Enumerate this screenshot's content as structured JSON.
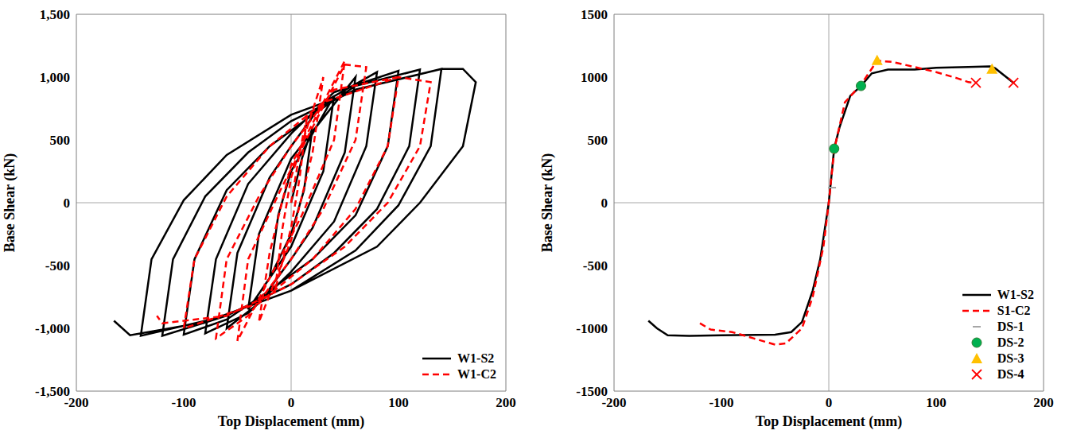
{
  "chart_data": [
    {
      "type": "line",
      "x_label": "Top Displacement (mm)",
      "y_label": "Base Shear (kN)",
      "xlim": [
        -200,
        200
      ],
      "xticks": [
        -200,
        -100,
        0,
        100,
        200
      ],
      "ylim": [
        -1500,
        1500
      ],
      "yticks": [
        {
          "value": -1500,
          "label": "-1,500"
        },
        {
          "value": -1000,
          "label": "-1,000"
        },
        -500,
        0,
        500,
        {
          "value": 1000,
          "label": "1,000"
        },
        {
          "value": 1500,
          "label": "1,500"
        }
      ],
      "legend": "lower right",
      "series": [
        {
          "name": "W1-S2",
          "color": "#000000",
          "line_style": "solid",
          "x": [
            0,
            10,
            20,
            12,
            0,
            -20,
            -12,
            0,
            40,
            30,
            0,
            -40,
            -30,
            0,
            60,
            50,
            20,
            0,
            -30,
            -60,
            -50,
            -20,
            0,
            30,
            80,
            70,
            40,
            0,
            -40,
            -80,
            -70,
            -40,
            0,
            40,
            100,
            90,
            60,
            20,
            -20,
            -60,
            -100,
            -90,
            -60,
            -20,
            20,
            60,
            120,
            110,
            80,
            40,
            0,
            -60,
            -120,
            -110,
            -80,
            -40,
            0,
            60,
            140,
            130,
            100,
            60,
            0,
            -70,
            -140,
            -130,
            -100,
            -60,
            0,
            70,
            140,
            160,
            172,
            160,
            120,
            80,
            0,
            -80,
            -150,
            -165
          ],
          "values": [
            0,
            350,
            600,
            100,
            -250,
            -600,
            -100,
            250,
            850,
            250,
            -350,
            -850,
            -250,
            350,
            1000,
            400,
            -200,
            -450,
            -800,
            -1000,
            -400,
            200,
            450,
            800,
            1040,
            450,
            -150,
            -550,
            -880,
            -1040,
            -450,
            150,
            550,
            880,
            1050,
            450,
            -100,
            -450,
            -700,
            -930,
            -1050,
            -450,
            100,
            450,
            700,
            930,
            1060,
            450,
            -50,
            -400,
            -650,
            -900,
            -1060,
            -450,
            50,
            400,
            650,
            900,
            1065,
            450,
            -20,
            -380,
            -700,
            -920,
            -1060,
            -450,
            20,
            380,
            700,
            920,
            1065,
            1065,
            960,
            450,
            0,
            -350,
            -700,
            -950,
            -1055,
            -940
          ]
        },
        {
          "name": "W1-C2",
          "color": "#ff0000",
          "line_style": "dashed",
          "x": [
            0,
            8,
            15,
            8,
            0,
            -15,
            -8,
            0,
            30,
            20,
            0,
            -30,
            -20,
            0,
            50,
            40,
            10,
            -20,
            -50,
            -40,
            -10,
            20,
            50,
            70,
            60,
            30,
            0,
            -40,
            -70,
            -60,
            -30,
            0,
            40,
            100,
            90,
            60,
            20,
            -30,
            -100,
            -90,
            -60,
            -20,
            30,
            100,
            130,
            120,
            90,
            50,
            0,
            -60,
            -120,
            -125
          ],
          "values": [
            0,
            400,
            700,
            200,
            -200,
            -700,
            -200,
            200,
            1000,
            400,
            -300,
            -950,
            -400,
            300,
            1130,
            500,
            -100,
            -600,
            -1100,
            -450,
            100,
            600,
            1100,
            1080,
            500,
            -50,
            -450,
            -900,
            -1080,
            -450,
            50,
            450,
            900,
            1000,
            450,
            -50,
            -450,
            -800,
            -1000,
            -450,
            50,
            450,
            800,
            1000,
            960,
            450,
            0,
            -350,
            -650,
            -900,
            -960,
            -900
          ]
        }
      ]
    },
    {
      "type": "line",
      "x_label": "Top Displacement (mm)",
      "y_label": "Base Shear (kN)",
      "xlim": [
        -200,
        200
      ],
      "xticks": [
        -200,
        -100,
        0,
        100,
        200
      ],
      "ylim": [
        -1500,
        1500
      ],
      "yticks": [
        -1500,
        -1000,
        -500,
        0,
        500,
        1000,
        1500
      ],
      "legend": "lower right",
      "series": [
        {
          "name": "W1-S2",
          "color": "#000000",
          "line_style": "solid",
          "type": "line",
          "x": [
            -168,
            -160,
            -150,
            -130,
            -100,
            -50,
            -35,
            -25,
            -15,
            -8,
            0,
            5,
            10,
            20,
            30,
            40,
            55,
            80,
            100,
            130,
            150,
            155,
            172
          ],
          "values": [
            -940,
            -1000,
            -1055,
            -1060,
            -1055,
            -1050,
            -1030,
            -950,
            -700,
            -450,
            0,
            430,
            600,
            850,
            930,
            1030,
            1060,
            1060,
            1075,
            1080,
            1085,
            1070,
            955
          ]
        },
        {
          "name": "S1-C2",
          "color": "#ff0000",
          "line_style": "dashed",
          "type": "line",
          "x": [
            -120,
            -110,
            -90,
            -70,
            -50,
            -40,
            -25,
            -15,
            -5,
            0,
            5,
            15,
            30,
            45,
            60,
            80,
            100,
            120,
            130,
            137
          ],
          "values": [
            -960,
            -1010,
            -1030,
            -1080,
            -1130,
            -1120,
            -1000,
            -750,
            -350,
            0,
            420,
            800,
            940,
            1130,
            1120,
            1080,
            1040,
            990,
            960,
            955
          ]
        },
        {
          "name": "DS-1",
          "color": "#a6a6a6",
          "type": "scatter",
          "marker": "dash",
          "x": [
            3
          ],
          "values": [
            120
          ]
        },
        {
          "name": "DS-2",
          "color": "#00b050",
          "type": "scatter",
          "marker": "circle",
          "x": [
            5,
            30
          ],
          "values": [
            430,
            930
          ]
        },
        {
          "name": "DS-3",
          "color": "#ffc000",
          "type": "scatter",
          "marker": "triangle",
          "x": [
            45,
            152
          ],
          "values": [
            1135,
            1065
          ]
        },
        {
          "name": "DS-4",
          "color": "#ff0000",
          "type": "scatter",
          "marker": "x",
          "x": [
            137,
            172
          ],
          "values": [
            955,
            955
          ]
        }
      ]
    }
  ]
}
